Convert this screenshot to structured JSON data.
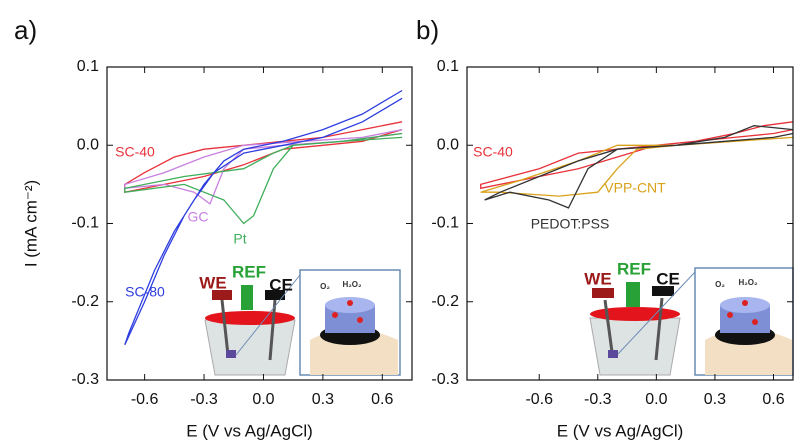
{
  "chart_data": [
    {
      "type": "line",
      "panel_label": "a)",
      "xlabel": "E (V vs Ag/AgCl)",
      "ylabel": "I (mA cm⁻²)",
      "xlim": [
        -0.79,
        0.75
      ],
      "ylim": [
        -0.3,
        0.1
      ],
      "xticks": [
        -0.6,
        -0.3,
        {
          "value": 0,
          "label": "0.0"
        },
        0.3,
        0.6
      ],
      "yticks": [
        0.1,
        {
          "value": 0,
          "label": "0.0"
        },
        -0.1,
        -0.2,
        -0.3
      ],
      "inset_labels": [
        "WE",
        "REF",
        "CE",
        "O₂",
        "H₂O₂"
      ],
      "series": [
        {
          "name": "SC-40",
          "color": "#e8323a",
          "x": [
            0.7,
            0.5,
            0.3,
            0.1,
            -0.1,
            -0.3,
            -0.45,
            -0.6,
            -0.7,
            -0.7,
            -0.5,
            -0.3,
            -0.1,
            0.1,
            0.3,
            0.5,
            0.7
          ],
          "values": [
            0.03,
            0.02,
            0.01,
            0.005,
            0.0,
            -0.005,
            -0.015,
            -0.035,
            -0.05,
            -0.06,
            -0.05,
            -0.04,
            -0.025,
            -0.005,
            0.0,
            0.005,
            0.02
          ]
        },
        {
          "name": "GC",
          "color": "#c77fe0",
          "x": [
            0.7,
            0.4,
            0.1,
            -0.1,
            -0.2,
            -0.27,
            -0.35,
            -0.5,
            -0.7,
            -0.7,
            -0.5,
            -0.3,
            -0.1,
            0.2,
            0.5,
            0.7
          ],
          "values": [
            0.015,
            0.005,
            0.0,
            -0.005,
            -0.03,
            -0.075,
            -0.06,
            -0.05,
            -0.055,
            -0.05,
            -0.035,
            -0.015,
            0.0,
            0.005,
            0.01,
            0.02
          ]
        },
        {
          "name": "Pt",
          "color": "#3fae5a",
          "x": [
            0.7,
            0.4,
            0.15,
            0.05,
            -0.05,
            -0.1,
            -0.2,
            -0.4,
            -0.7,
            -0.7,
            -0.4,
            -0.1,
            0.05,
            0.15,
            0.4,
            0.7
          ],
          "values": [
            0.01,
            0.005,
            0.0,
            -0.03,
            -0.09,
            -0.1,
            -0.07,
            -0.05,
            -0.06,
            -0.055,
            -0.04,
            -0.03,
            -0.01,
            0.0,
            0.005,
            0.015
          ]
        },
        {
          "name": "SC-80",
          "color": "#2d3de0",
          "x": [
            0.7,
            0.5,
            0.3,
            0.1,
            -0.1,
            -0.2,
            -0.3,
            -0.4,
            -0.5,
            -0.6,
            -0.7,
            -0.68,
            -0.55,
            -0.45,
            -0.35,
            -0.25,
            -0.1,
            0.1,
            0.3,
            0.5,
            0.7
          ],
          "values": [
            0.07,
            0.04,
            0.02,
            0.005,
            -0.005,
            -0.02,
            -0.05,
            -0.09,
            -0.14,
            -0.2,
            -0.255,
            -0.24,
            -0.16,
            -0.11,
            -0.07,
            -0.035,
            -0.01,
            0.0,
            0.01,
            0.03,
            0.06
          ]
        }
      ]
    },
    {
      "type": "line",
      "panel_label": "b)",
      "xlabel": "E (V vs Ag/AgCl)",
      "xlim": [
        -0.97,
        0.7
      ],
      "ylim": [
        -0.3,
        0.1
      ],
      "xticks": [
        -0.6,
        -0.3,
        {
          "value": 0,
          "label": "0.0"
        },
        0.3,
        0.6
      ],
      "yticks": [
        0.1,
        {
          "value": 0,
          "label": "0.0"
        },
        -0.1,
        -0.2,
        -0.3
      ],
      "inset_labels": [
        "WE",
        "REF",
        "CE",
        "O₂",
        "H₂O₂"
      ],
      "series": [
        {
          "name": "SC-40",
          "color": "#e8323a",
          "x": [
            0.7,
            0.55,
            0.4,
            0.2,
            0.0,
            -0.2,
            -0.4,
            -0.6,
            -0.9,
            -0.9,
            -0.6,
            -0.4,
            -0.2,
            0.0,
            0.2,
            0.4,
            0.6,
            0.7
          ],
          "values": [
            0.03,
            0.025,
            0.015,
            0.005,
            0.0,
            -0.005,
            -0.01,
            -0.03,
            -0.05,
            -0.055,
            -0.04,
            -0.03,
            -0.015,
            0.0,
            0.005,
            0.01,
            0.015,
            0.02
          ]
        },
        {
          "name": "VPP-CNT",
          "color": "#d9a21b",
          "x": [
            0.7,
            0.4,
            0.1,
            -0.1,
            -0.2,
            -0.3,
            -0.5,
            -0.8,
            -0.9,
            -0.7,
            -0.4,
            -0.2,
            0.1,
            0.4,
            0.7
          ],
          "values": [
            0.01,
            0.005,
            0.0,
            -0.005,
            -0.03,
            -0.06,
            -0.065,
            -0.06,
            -0.06,
            -0.045,
            -0.02,
            0.0,
            0.0,
            0.005,
            0.01
          ]
        },
        {
          "name": "PEDOT:PSS",
          "color": "#333333",
          "x": [
            0.7,
            0.5,
            0.35,
            0.1,
            -0.2,
            -0.35,
            -0.45,
            -0.55,
            -0.75,
            -0.88,
            -0.8,
            -0.6,
            -0.4,
            -0.2,
            0.1,
            0.35,
            0.6,
            0.7
          ],
          "values": [
            0.02,
            0.025,
            0.01,
            0.0,
            -0.005,
            -0.03,
            -0.08,
            -0.07,
            -0.06,
            -0.07,
            -0.06,
            -0.04,
            -0.02,
            -0.005,
            0.0,
            0.005,
            0.01,
            0.015
          ]
        }
      ]
    }
  ]
}
